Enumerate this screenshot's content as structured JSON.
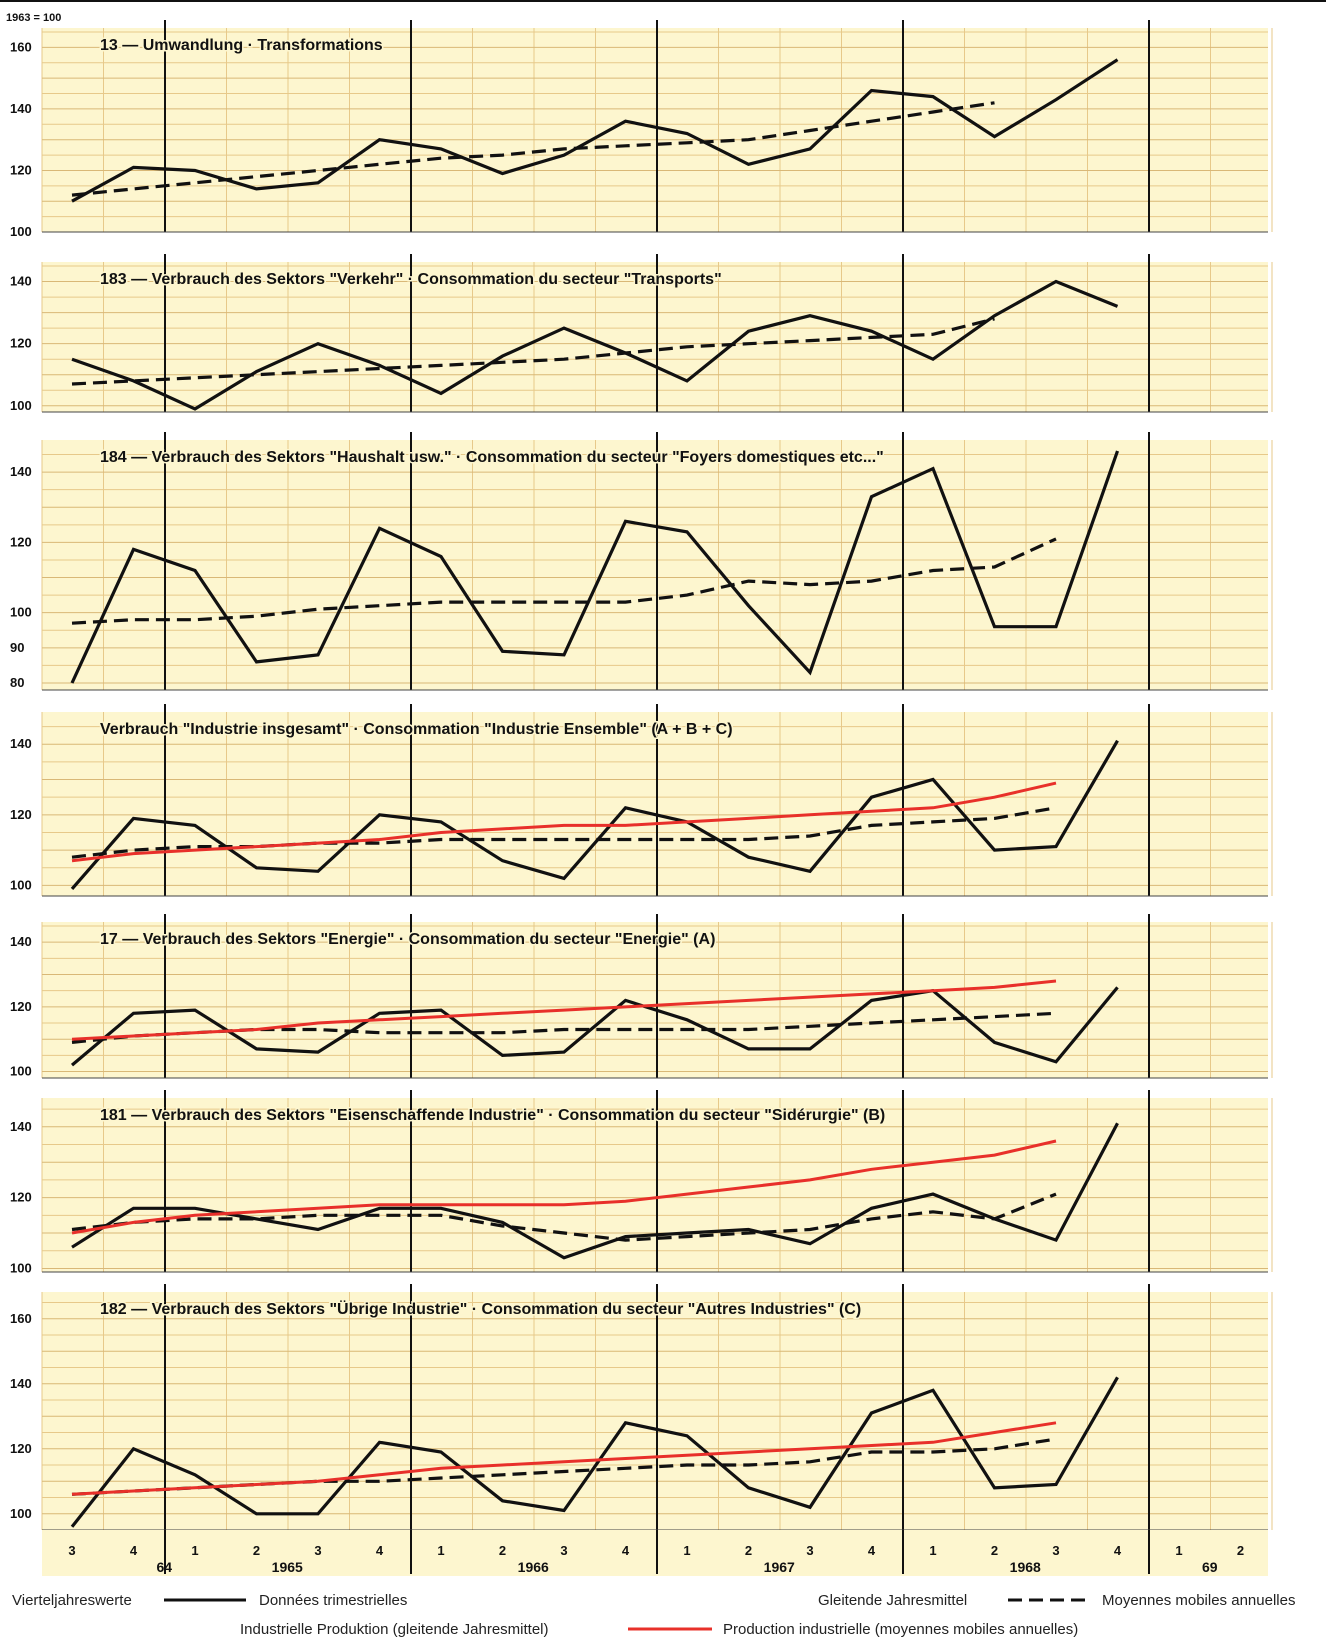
{
  "base_label": "1963 = 100",
  "legend": {
    "quarterly_de": "Vierteljahreswerte",
    "quarterly_fr": "Données trimestrielles",
    "moving_de": "Gleitende Jahresmittel",
    "moving_fr": "Moyennes mobiles annuelles",
    "industrial_de": "Industrielle Produktion (gleitende Jahresmittel)",
    "industrial_fr": "Production industrielle (moyennes mobiles annuelles)"
  },
  "colors": {
    "quarterly": "#111111",
    "moving": "#111111",
    "industrial": "#e8302a",
    "grid": "#e7c98a",
    "background": "#fdf6cf"
  },
  "x_axis": {
    "quarters": [
      "3",
      "4",
      "1",
      "2",
      "3",
      "4",
      "1",
      "2",
      "3",
      "4",
      "1",
      "2",
      "3",
      "4",
      "1",
      "2",
      "3",
      "4",
      "1",
      "2"
    ],
    "years": [
      {
        "label": "64",
        "at": 1.5
      },
      {
        "label": "1965",
        "at": 3.5
      },
      {
        "label": "1966",
        "at": 7.5
      },
      {
        "label": "1967",
        "at": 11.5
      },
      {
        "label": "1968",
        "at": 15.5
      },
      {
        "label": "69",
        "at": 18.5
      }
    ],
    "year_boundaries": [
      2,
      6,
      10,
      14,
      18
    ]
  },
  "chart_data": [
    {
      "type": "line",
      "title": "13 — Umwandlung · Transformations",
      "ylim": [
        100,
        165
      ],
      "yticks": [
        100,
        120,
        140,
        160
      ],
      "series": [
        {
          "key": "quarterly",
          "values": [
            110,
            121,
            120,
            114,
            116,
            130,
            127,
            119,
            125,
            136,
            132,
            122,
            127,
            146,
            144,
            131,
            143,
            156
          ]
        },
        {
          "key": "moving",
          "values": [
            112,
            114,
            116,
            118,
            120,
            122,
            124,
            125,
            127,
            128,
            129,
            130,
            133,
            136,
            139,
            142
          ]
        }
      ]
    },
    {
      "type": "line",
      "title": "183 — Verbrauch des Sektors \"Verkehr\" · Consommation du secteur \"Transports\"",
      "ylim": [
        98,
        145
      ],
      "yticks": [
        100,
        120,
        140
      ],
      "series": [
        {
          "key": "quarterly",
          "values": [
            115,
            108,
            99,
            111,
            120,
            113,
            104,
            116,
            125,
            117,
            108,
            124,
            129,
            124,
            115,
            129,
            140,
            132
          ]
        },
        {
          "key": "moving",
          "values": [
            107,
            108,
            109,
            110,
            111,
            112,
            113,
            114,
            115,
            117,
            119,
            120,
            121,
            122,
            123,
            128
          ]
        }
      ]
    },
    {
      "type": "line",
      "title": "184 — Verbrauch des Sektors \"Haushalt usw.\" · Consommation du secteur \"Foyers domestiques etc...\"",
      "ylim": [
        78,
        148
      ],
      "yticks": [
        80,
        90,
        100,
        120,
        140
      ],
      "series": [
        {
          "key": "quarterly",
          "values": [
            80,
            118,
            112,
            86,
            88,
            124,
            116,
            89,
            88,
            126,
            123,
            102,
            83,
            133,
            141,
            96,
            96,
            146
          ]
        },
        {
          "key": "moving",
          "values": [
            97,
            98,
            98,
            99,
            101,
            102,
            103,
            103,
            103,
            103,
            105,
            109,
            108,
            109,
            112,
            113,
            121
          ]
        }
      ]
    },
    {
      "type": "line",
      "title": "Verbrauch \"Industrie insgesamt\" · Consommation \"Industrie Ensemble\" (A + B + C)",
      "ylim": [
        97,
        148
      ],
      "yticks": [
        100,
        120,
        140
      ],
      "series": [
        {
          "key": "quarterly",
          "values": [
            99,
            119,
            117,
            105,
            104,
            120,
            118,
            107,
            102,
            122,
            118,
            108,
            104,
            125,
            130,
            110,
            111,
            141
          ]
        },
        {
          "key": "moving",
          "values": [
            108,
            110,
            111,
            111,
            112,
            112,
            113,
            113,
            113,
            113,
            113,
            113,
            114,
            117,
            118,
            119,
            122
          ]
        },
        {
          "key": "industrial",
          "values": [
            107,
            109,
            110,
            111,
            112,
            113,
            115,
            116,
            117,
            117,
            118,
            119,
            120,
            121,
            122,
            125,
            129
          ]
        }
      ]
    },
    {
      "type": "line",
      "title": "17 — Verbrauch des Sektors \"Energie\" · Consommation du secteur \"Energie\" (A)",
      "ylim": [
        98,
        145
      ],
      "yticks": [
        100,
        120,
        140
      ],
      "series": [
        {
          "key": "quarterly",
          "values": [
            102,
            118,
            119,
            107,
            106,
            118,
            119,
            105,
            106,
            122,
            116,
            107,
            107,
            122,
            125,
            109,
            103,
            126
          ]
        },
        {
          "key": "moving",
          "values": [
            109,
            111,
            112,
            113,
            113,
            112,
            112,
            112,
            113,
            113,
            113,
            113,
            114,
            115,
            116,
            117,
            118
          ]
        },
        {
          "key": "industrial",
          "values": [
            110,
            111,
            112,
            113,
            115,
            116,
            117,
            118,
            119,
            120,
            121,
            122,
            123,
            124,
            125,
            126,
            128
          ]
        }
      ]
    },
    {
      "type": "line",
      "title": "181 — Verbrauch des Sektors \"Eisenschaffende Industrie\" · Consommation du secteur \"Sidérurgie\" (B)",
      "ylim": [
        99,
        147
      ],
      "yticks": [
        100,
        120,
        140
      ],
      "series": [
        {
          "key": "quarterly",
          "values": [
            106,
            117,
            117,
            114,
            111,
            117,
            117,
            113,
            103,
            109,
            110,
            111,
            107,
            117,
            121,
            114,
            108,
            141
          ]
        },
        {
          "key": "moving",
          "values": [
            111,
            113,
            114,
            114,
            115,
            115,
            115,
            112,
            110,
            108,
            109,
            110,
            111,
            114,
            116,
            114,
            121
          ]
        },
        {
          "key": "industrial",
          "values": [
            110,
            113,
            115,
            116,
            117,
            118,
            118,
            118,
            118,
            119,
            121,
            123,
            125,
            128,
            130,
            132,
            136
          ]
        }
      ]
    },
    {
      "type": "line",
      "title": "182 — Verbrauch des Sektors \"Übrige Industrie\" · Consommation du secteur \"Autres Industries\" (C)",
      "ylim": [
        95,
        167
      ],
      "yticks": [
        100,
        120,
        140,
        160
      ],
      "series": [
        {
          "key": "quarterly",
          "values": [
            96,
            120,
            112,
            100,
            100,
            122,
            119,
            104,
            101,
            128,
            124,
            108,
            102,
            131,
            138,
            108,
            109,
            142
          ]
        },
        {
          "key": "moving",
          "values": [
            106,
            107,
            108,
            109,
            110,
            110,
            111,
            112,
            113,
            114,
            115,
            115,
            116,
            119,
            119,
            120,
            123
          ]
        },
        {
          "key": "industrial",
          "values": [
            106,
            107,
            108,
            109,
            110,
            112,
            114,
            115,
            116,
            117,
            118,
            119,
            120,
            121,
            122,
            125,
            128
          ]
        }
      ]
    }
  ]
}
